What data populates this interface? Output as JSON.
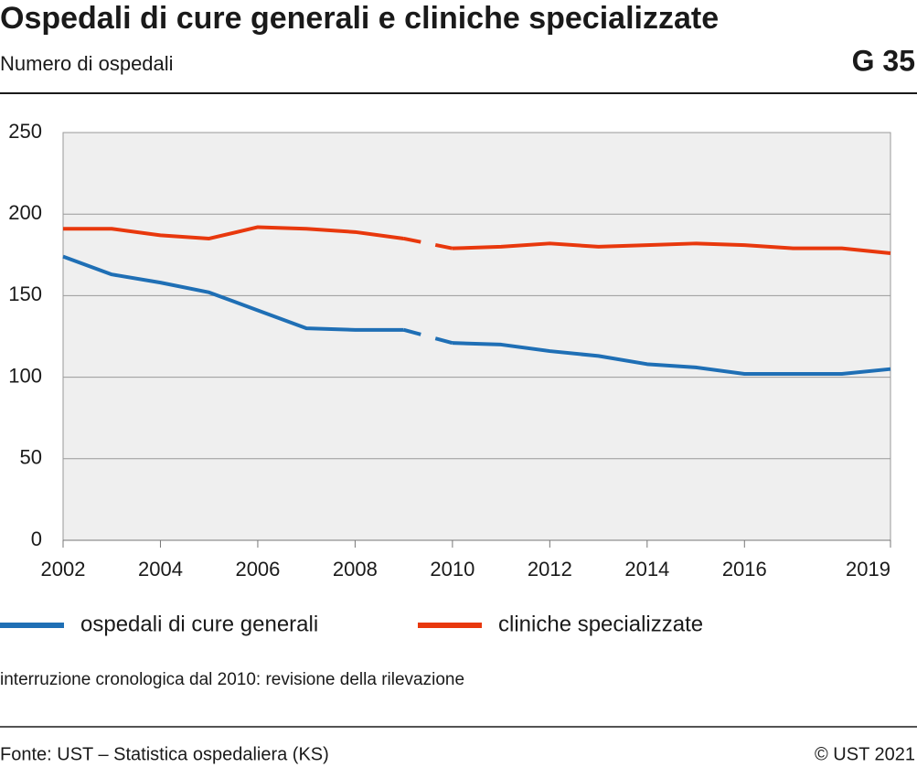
{
  "chart_data": {
    "type": "line",
    "title": "Ospedali di cure generali e cliniche specializzate",
    "subtitle": "Numero di ospedali",
    "chart_id": "G 35",
    "x": [
      2002,
      2003,
      2004,
      2005,
      2006,
      2007,
      2008,
      2009,
      2010,
      2011,
      2012,
      2013,
      2014,
      2015,
      2016,
      2017,
      2018,
      2019
    ],
    "series": [
      {
        "name": "ospedali di cure generali",
        "color": "#1f6fb5",
        "values": [
          174,
          163,
          158,
          152,
          141,
          130,
          129,
          129,
          121,
          120,
          116,
          113,
          108,
          106,
          102,
          102,
          102,
          105
        ]
      },
      {
        "name": "cliniche specializzate",
        "color": "#e8380d",
        "values": [
          191,
          191,
          187,
          185,
          192,
          191,
          189,
          185,
          179,
          180,
          182,
          180,
          181,
          182,
          181,
          179,
          179,
          176
        ]
      }
    ],
    "break_between": [
      2009,
      2010
    ],
    "xlim": [
      2002,
      2019
    ],
    "xticks": [
      2002,
      2004,
      2006,
      2008,
      2010,
      2012,
      2014,
      2016,
      2019
    ],
    "ylim": [
      0,
      250
    ],
    "yticks": [
      0,
      50,
      100,
      150,
      200,
      250
    ],
    "grid": true,
    "note": "interruzione cronologica dal 2010: revisione della rilevazione",
    "source": "Fonte: UST – Statistica ospedaliera (KS)",
    "copyright": "© UST 2021"
  }
}
